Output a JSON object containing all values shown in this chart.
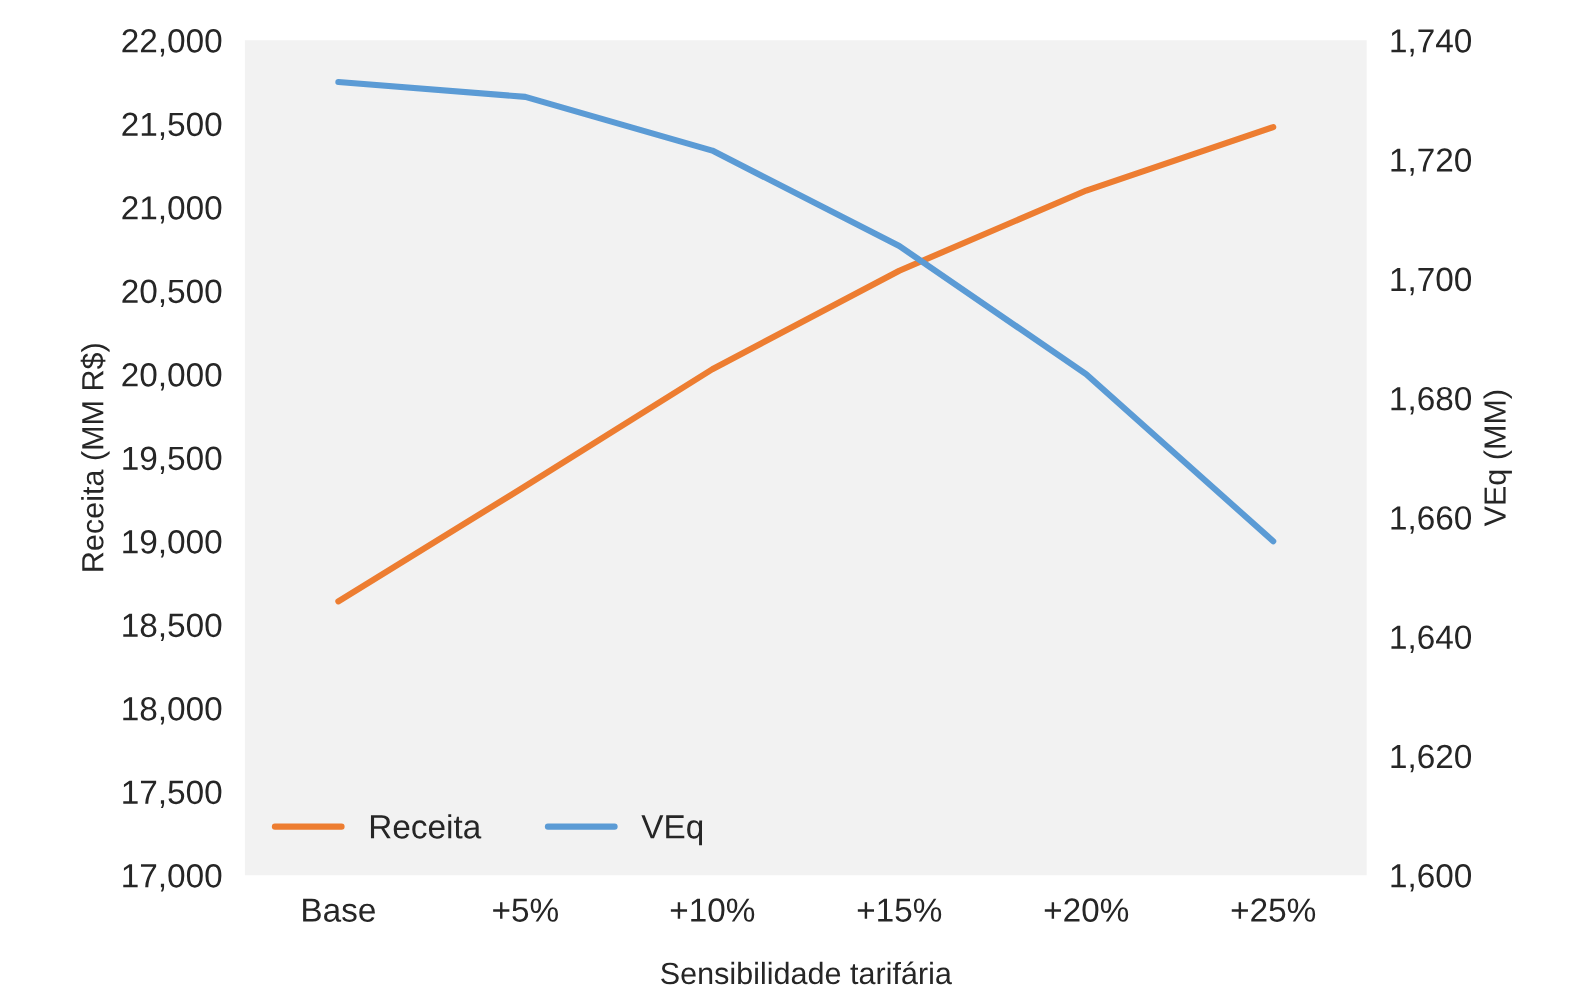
{
  "chart_data": {
    "type": "line",
    "xlabel": "Sensibilidade tarifária",
    "ylabel": "Receita (MM R$)",
    "y2label": "VEq (MM)",
    "categories": [
      "Base",
      "+5%",
      "+10%",
      "+15%",
      "+20%",
      "+25%"
    ],
    "series": [
      {
        "name": "Receita",
        "color": "#ed7d31",
        "values": [
          18640,
          19330,
          20030,
          20620,
          21100,
          21480
        ]
      },
      {
        "name": "VEq",
        "color": "#5b9bd5",
        "axis": "y2",
        "values": [
          1733,
          1730.5,
          1721.5,
          1705.5,
          1684,
          1656
        ]
      }
    ],
    "ylim": [
      17000,
      22000
    ],
    "yticks": [
      {
        "value": 17000,
        "label": "17,000"
      },
      {
        "value": 17500,
        "label": "17,500"
      },
      {
        "value": 18000,
        "label": "18,000"
      },
      {
        "value": 18500,
        "label": "18,500"
      },
      {
        "value": 19000,
        "label": "19,000"
      },
      {
        "value": 19500,
        "label": "19,500"
      },
      {
        "value": 20000,
        "label": "20,000"
      },
      {
        "value": 20500,
        "label": "20,500"
      },
      {
        "value": 21000,
        "label": "21,000"
      },
      {
        "value": 21500,
        "label": "21,500"
      },
      {
        "value": 22000,
        "label": "22,000"
      }
    ],
    "y2lim": [
      1600,
      1740
    ],
    "y2ticks": [
      {
        "value": 1600,
        "label": "1,600"
      },
      {
        "value": 1620,
        "label": "1,620"
      },
      {
        "value": 1640,
        "label": "1,640"
      },
      {
        "value": 1660,
        "label": "1,660"
      },
      {
        "value": 1680,
        "label": "1,680"
      },
      {
        "value": 1700,
        "label": "1,700"
      },
      {
        "value": 1720,
        "label": "1,720"
      },
      {
        "value": 1740,
        "label": "1,740"
      }
    ],
    "legend": "bottom left",
    "marker": "none",
    "line_style": "solid",
    "grid": false
  }
}
